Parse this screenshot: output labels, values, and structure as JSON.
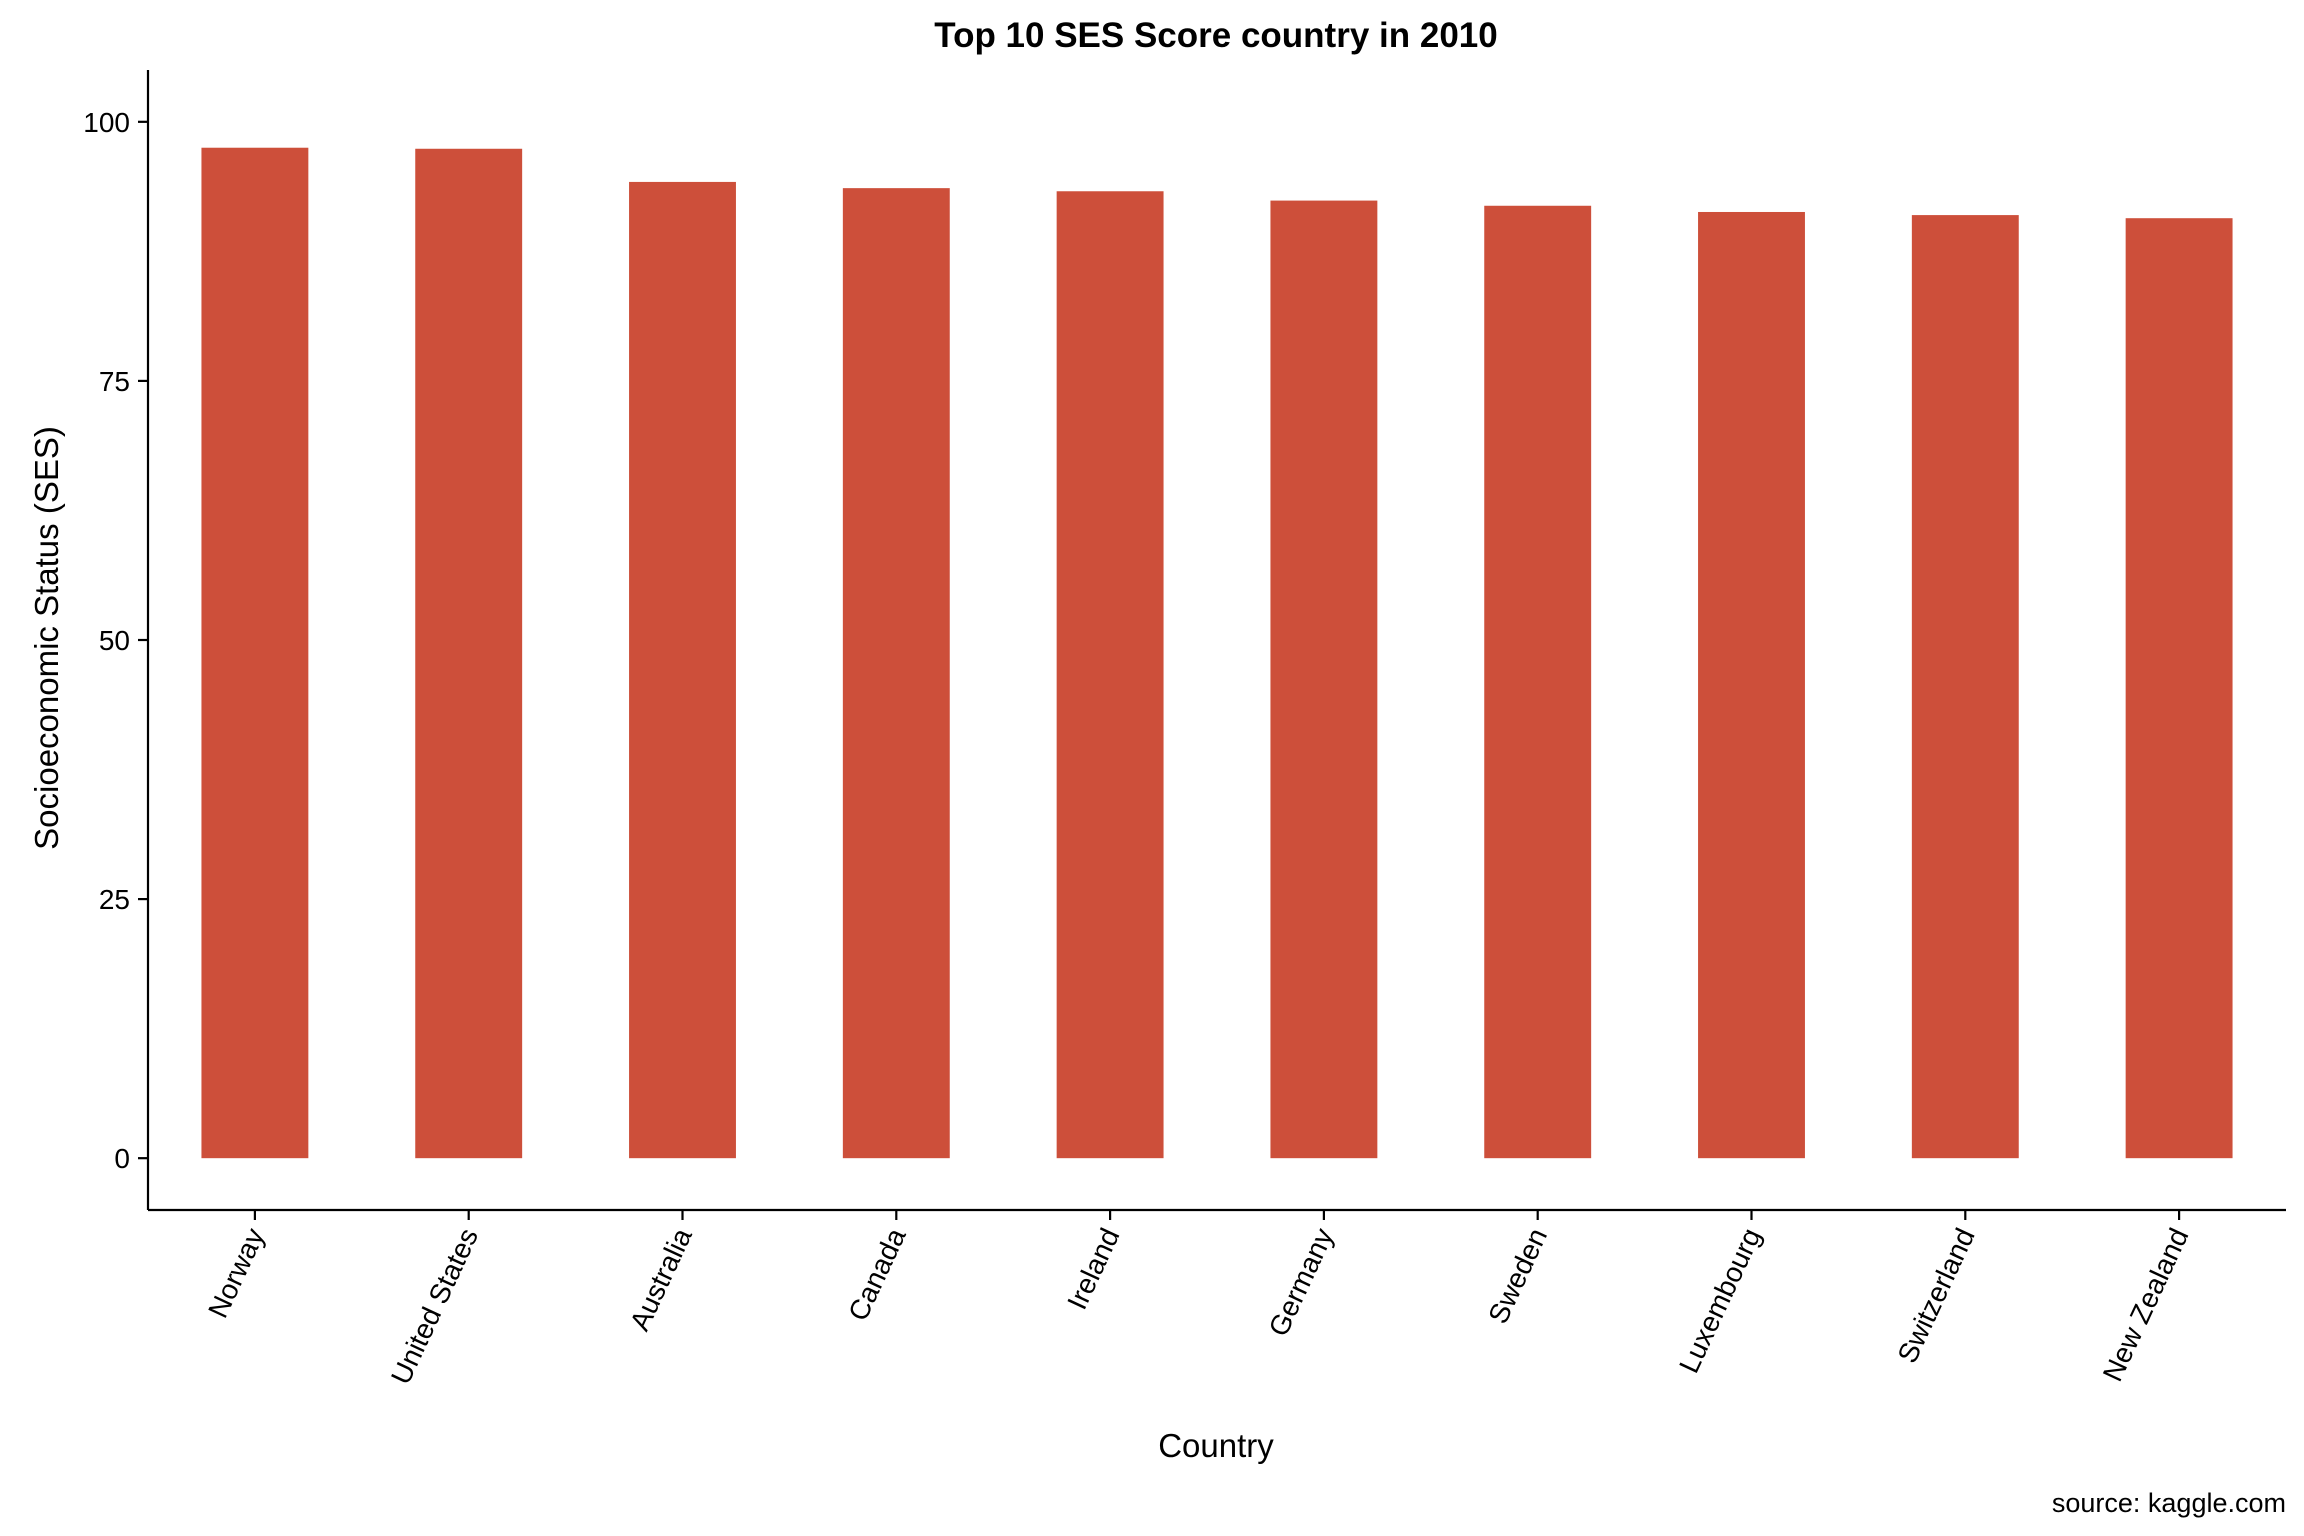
{
  "chart_data": {
    "type": "bar",
    "title": "Top 10 SES Score country in 2010",
    "xlabel": "Country",
    "ylabel": "Socioeconomic Status (SES)",
    "caption": "source: kaggle.com",
    "categories": [
      "Norway",
      "United States",
      "Australia",
      "Canada",
      "Ireland",
      "Germany",
      "Sweden",
      "Luxembourg",
      "Switzerland",
      "New Zealand"
    ],
    "values": [
      97.5,
      97.4,
      94.2,
      93.6,
      93.3,
      92.4,
      91.9,
      91.3,
      91.0,
      90.7
    ],
    "yticks": [
      "0",
      "25",
      "50",
      "75",
      "100"
    ],
    "ylim": [
      -5,
      105
    ],
    "bar_color": "#CD4F3A",
    "grid": false,
    "legend": "none"
  }
}
